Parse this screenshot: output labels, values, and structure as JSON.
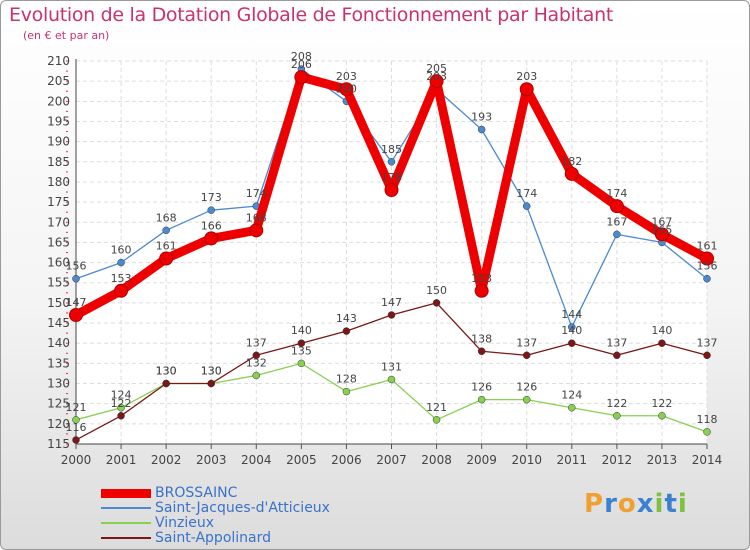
{
  "title": "Evolution de la Dotation Globale de Fonctionnement par Habitant",
  "subtitle": "(en € et par an)",
  "logo": {
    "text": "Proxiti",
    "letters": [
      "P",
      "r",
      "o",
      "x",
      "i",
      "t",
      "i"
    ],
    "colors": [
      "#f0a030",
      "#3a82d0",
      "#f0a030",
      "#3a82d0",
      "#80c040",
      "#3a82d0",
      "#80c040"
    ]
  },
  "chart_data": {
    "type": "line",
    "title": "Evolution de la Dotation Globale de Fonctionnement par Habitant",
    "ylabel": "(en € et par an)",
    "xlabel": "",
    "x": [
      "2000",
      "2001",
      "2002",
      "2003",
      "2004",
      "2005",
      "2006",
      "2007",
      "2008",
      "2009",
      "2010",
      "2011",
      "2012",
      "2013",
      "2014"
    ],
    "ylim": [
      115,
      210
    ],
    "yticks": [
      115,
      120,
      125,
      130,
      135,
      140,
      145,
      150,
      155,
      160,
      165,
      170,
      175,
      180,
      185,
      190,
      195,
      200,
      205,
      210
    ],
    "grid": true,
    "legend_position": "bottom-left",
    "series": [
      {
        "name": "BROSSAINC",
        "color": "#ee0000",
        "width": "thick",
        "values": [
          147,
          153,
          161,
          166,
          168,
          206,
          203,
          178,
          205,
          153,
          203,
          182,
          174,
          167,
          161
        ],
        "labels": [
          "147",
          "153",
          "161",
          "166",
          "168",
          "206",
          "203",
          "178",
          "205",
          "153",
          "203",
          "182",
          "174",
          "167",
          "161"
        ]
      },
      {
        "name": "Saint-Jacques-d'Atticieux",
        "color": "#4a8ad0",
        "width": "thin",
        "values": [
          156,
          160,
          168,
          173,
          174,
          208,
          200,
          185,
          203,
          193,
          174,
          144,
          167,
          165,
          156
        ],
        "labels": [
          "156",
          "160",
          "168",
          "173",
          "174",
          "208",
          "200",
          "185",
          "203",
          "193",
          "174",
          "144",
          "167",
          "165",
          "156"
        ]
      },
      {
        "name": "Vinzieux",
        "color": "#88d050",
        "width": "thin",
        "values": [
          121,
          124,
          130,
          130,
          132,
          135,
          128,
          131,
          121,
          126,
          126,
          124,
          122,
          122,
          118
        ],
        "labels": [
          "121",
          "124",
          "130",
          "130",
          "132",
          "135",
          "128",
          "131",
          "121",
          "126",
          "126",
          "124",
          "122",
          "122",
          "118"
        ]
      },
      {
        "name": "Saint-Appolinard",
        "color": "#7a1818",
        "width": "thin",
        "values": [
          116,
          122,
          130,
          130,
          137,
          140,
          143,
          147,
          150,
          138,
          137,
          140,
          137,
          140,
          137
        ],
        "labels": [
          "116",
          "122",
          "130",
          "130",
          "137",
          "140",
          "143",
          "147",
          "150",
          "138",
          "137",
          "140",
          "137",
          "140",
          "137"
        ]
      }
    ]
  }
}
